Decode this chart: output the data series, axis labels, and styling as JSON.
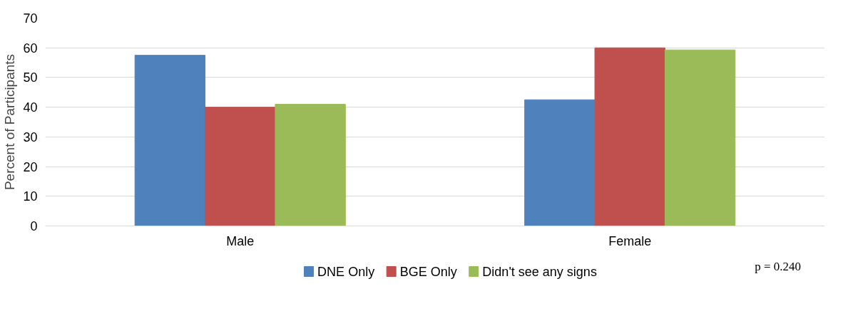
{
  "chart_data": {
    "type": "bar",
    "ylabel": "Percent of Participants",
    "categories": [
      "Male",
      "Female"
    ],
    "series": [
      {
        "name": "DNE Only",
        "color": "#4f81bd",
        "values": [
          57.5,
          42.5
        ]
      },
      {
        "name": "BGE Only",
        "color": "#c0504d",
        "values": [
          40,
          60
        ]
      },
      {
        "name": "Didn't see any signs",
        "color": "#9bbb59",
        "values": [
          41,
          59.3
        ]
      }
    ],
    "ylim": [
      0,
      70
    ],
    "yticks": [
      0,
      10,
      20,
      30,
      40,
      50,
      60,
      70
    ],
    "grid": "y",
    "legend": "bottom",
    "annotations": [
      "p = 0.240"
    ]
  }
}
